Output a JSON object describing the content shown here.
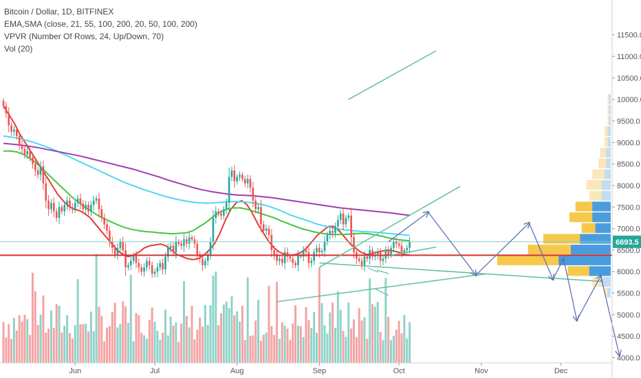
{
  "chart_data": {
    "type": "candlestick",
    "title": "Bitcoin / Dollar, 1D, BITFINEX",
    "indicators": [
      "EMA,SMA (close, 21, 55, 100, 200, 20, 50, 100, 200)",
      "VPVR (Number Of Rows, 24, Up/Down, 70)",
      "Vol (20)"
    ],
    "y_axis": {
      "ticks": [
        11500,
        11000,
        10500,
        10000,
        9500,
        9000,
        8500,
        8000,
        7500,
        7000,
        6500,
        6000,
        5500,
        5000,
        4500,
        4000
      ],
      "tick_labels": [
        "11500.0",
        "11000.0",
        "10500.0",
        "10000.0",
        "9500.0",
        "9000.0",
        "8500.0",
        "8000.0",
        "7500.0",
        "7000.0",
        "6500.0",
        "6000.0",
        "5500.0",
        "5000.0",
        "4500.0",
        "4000.0"
      ],
      "range": [
        3880,
        12150
      ]
    },
    "x_axis": {
      "tick_labels": [
        "Jun",
        "Jul",
        "Aug",
        "Sep",
        "Oct",
        "Nov",
        "Dec"
      ]
    },
    "last_price": "6693.5",
    "last_price_value": 6693.5,
    "support_level": 6380,
    "candle_start": "2018-05-05",
    "closes": [
      9850,
      9680,
      9400,
      9250,
      9300,
      9150,
      8950,
      8850,
      8720,
      8800,
      8650,
      8500,
      8350,
      8250,
      8450,
      8050,
      7650,
      7450,
      7600,
      7400,
      7250,
      7500,
      7400,
      7550,
      7650,
      7500,
      7450,
      7600,
      7700,
      7580,
      7450,
      7550,
      7400,
      7550,
      7650,
      7700,
      7450,
      7250,
      7100,
      6950,
      6700,
      6550,
      6400,
      6550,
      6700,
      6500,
      6100,
      6150,
      6250,
      6380,
      6200,
      6100,
      6000,
      6100,
      6250,
      6150,
      5950,
      6000,
      6100,
      6200,
      6050,
      6350,
      6550,
      6600,
      6450,
      6700,
      6650,
      6600,
      6750,
      6650,
      6800,
      6750,
      6650,
      6400,
      6300,
      6150,
      6250,
      6400,
      6700,
      7250,
      7400,
      7350,
      7300,
      7450,
      7600,
      8200,
      8350,
      8100,
      8200,
      8250,
      8150,
      8050,
      8150,
      7950,
      7650,
      7450,
      7500,
      7100,
      6950,
      7000,
      6850,
      6500,
      6400,
      6250,
      6300,
      6200,
      6450,
      6350,
      6300,
      6200,
      6150,
      6380,
      6350,
      6500,
      6450,
      6200,
      6250,
      6450,
      6550,
      6450,
      6480,
      6700,
      6850,
      6950,
      6900,
      7050,
      7200,
      7350,
      7100,
      7250,
      7300,
      6800,
      6450,
      6300,
      6250,
      6150,
      6350,
      6300,
      6500,
      6350,
      6400,
      6450,
      6250,
      6300,
      6500,
      6400,
      6550,
      6700,
      6650,
      6600,
      6450,
      6500,
      6550,
      6693.5
    ],
    "volume_range_label": "Vol (20)",
    "ema_lines": [
      {
        "name": "EMA 21",
        "color": "#e53935",
        "values": [
          9850,
          9650,
          9450,
          9200,
          9000,
          8800,
          8600,
          8400,
          8200,
          8000,
          7800,
          7650,
          7520,
          7450,
          7420,
          7350,
          7250,
          7100,
          6950,
          6800,
          6650,
          6500,
          6400,
          6350,
          6380,
          6450,
          6550,
          6600,
          6620,
          6640,
          6600,
          6500,
          6400,
          6350,
          6300,
          6280,
          6300,
          6380,
          6500,
          6650,
          6900,
          7200,
          7450,
          7600,
          7650,
          7550,
          7350,
          7100,
          6900,
          6700,
          6550,
          6450,
          6400,
          6380,
          6400,
          6450,
          6550,
          6700,
          6850,
          6950,
          7050,
          7050,
          6950,
          6800,
          6650,
          6550,
          6450,
          6400,
          6420,
          6450,
          6480,
          6500,
          6480,
          6450,
          6400,
          6380
        ]
      },
      {
        "name": "EMA 55",
        "color": "#43c443",
        "values": [
          8800,
          8800,
          8780,
          8720,
          8620,
          8500,
          8350,
          8200,
          8050,
          7900,
          7750,
          7620,
          7500,
          7400,
          7300,
          7220,
          7150,
          7080,
          7020,
          6980,
          6950,
          6930,
          6920,
          6900,
          6890,
          6880,
          6890,
          6900,
          6950,
          7050,
          7150,
          7280,
          7380,
          7450,
          7480,
          7480,
          7450,
          7400,
          7350,
          7300,
          7250,
          7180,
          7120,
          7060,
          7000,
          6960,
          6920,
          6890,
          6870,
          6860,
          6860,
          6870,
          6880,
          6890,
          6880,
          6850,
          6820,
          6780,
          6750,
          6730,
          6720
        ]
      },
      {
        "name": "SMA 100",
        "color": "#4dd8f0",
        "values": [
          9150,
          9120,
          9080,
          9020,
          8950,
          8870,
          8780,
          8680,
          8580,
          8480,
          8380,
          8280,
          8180,
          8080,
          8000,
          7920,
          7850,
          7780,
          7720,
          7670,
          7630,
          7600,
          7590,
          7600,
          7620,
          7630,
          7620,
          7600,
          7560,
          7500,
          7420,
          7320,
          7250,
          7180,
          7100,
          7050,
          7000,
          6970,
          6950,
          6930,
          6920,
          6900,
          6880,
          6860,
          6840
        ]
      },
      {
        "name": "SMA 200",
        "color": "#9c3fb0",
        "values": [
          8980,
          8960,
          8940,
          8910,
          8880,
          8840,
          8800,
          8760,
          8720,
          8680,
          8630,
          8580,
          8530,
          8480,
          8430,
          8380,
          8320,
          8260,
          8200,
          8130,
          8070,
          8010,
          7950,
          7900,
          7860,
          7830,
          7800,
          7780,
          7770,
          7760,
          7740,
          7720,
          7690,
          7660,
          7630,
          7600,
          7570,
          7540,
          7510,
          7480,
          7460,
          7440,
          7420,
          7400,
          7380,
          7360,
          7330,
          7310
        ]
      }
    ],
    "volume_profile": {
      "levels": [
        5500,
        5750,
        6000,
        6250,
        6500,
        6750,
        7000,
        7250,
        7500,
        7750,
        8000,
        8250,
        8500,
        8750,
        9000,
        9250,
        9500,
        9750,
        10000
      ],
      "buy": [
        2,
        6,
        14,
        34,
        26,
        20,
        10,
        12,
        12,
        6,
        6,
        4,
        3,
        3,
        2,
        2,
        1,
        1,
        1
      ],
      "sell": [
        2,
        6,
        14,
        40,
        28,
        24,
        9,
        15,
        11,
        8,
        10,
        8,
        5,
        4,
        2,
        2,
        1,
        1,
        1
      ]
    },
    "grid": false,
    "legend": "top-left",
    "colors": {
      "up": "#26a69a",
      "down": "#ef5350",
      "vol_up": "#8fd3c9",
      "vol_down": "#f4a3a3",
      "support": "#d32f2f",
      "trendline": "#5fbf9a",
      "projection": "#6070b8",
      "price_tag": "#26a69a"
    }
  }
}
